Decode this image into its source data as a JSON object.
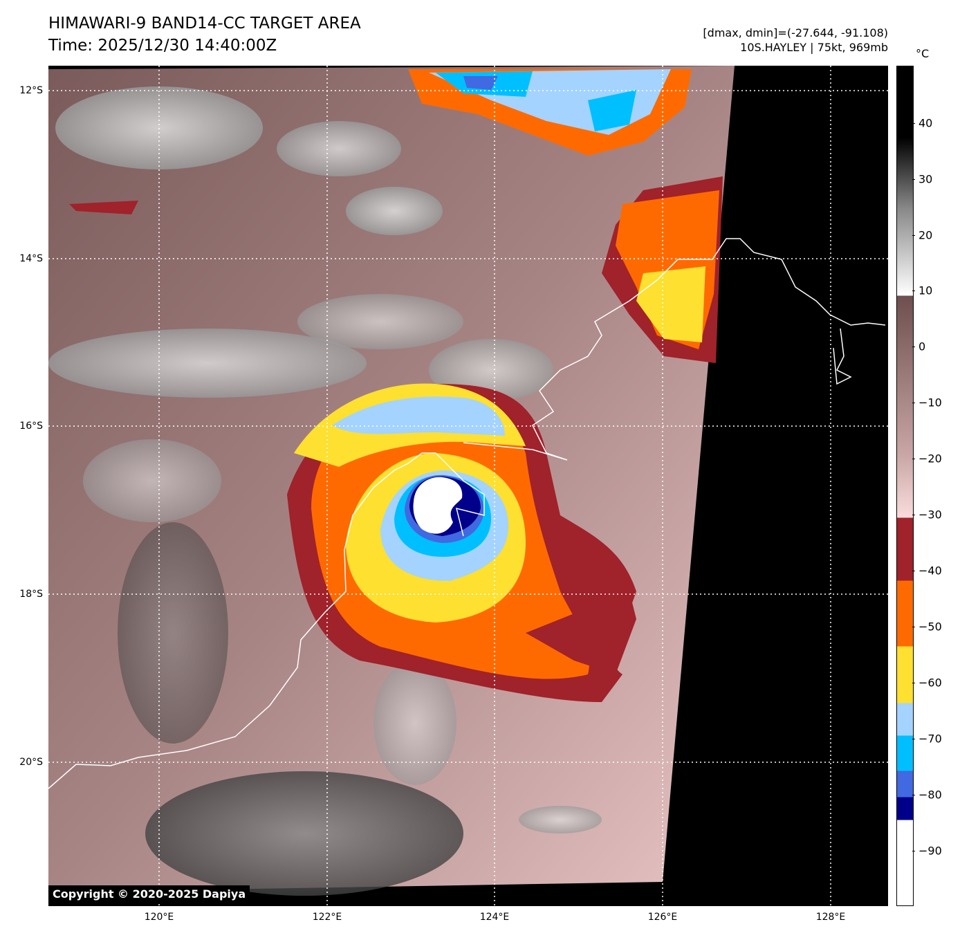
{
  "header": {
    "title_line1": "HIMAWARI-9 BAND14-CC TARGET AREA",
    "title_line2": "Time: 2025/12/30 14:40:00Z",
    "dminmax": "[dmax, dmin]=(-27.644, -91.108)",
    "storm": "10S.HAYLEY | 75kt, 969mb"
  },
  "map": {
    "lat_labels": [
      "12°S",
      "14°S",
      "16°S",
      "18°S",
      "20°S"
    ],
    "lon_labels": [
      "120°E",
      "122°E",
      "124°E",
      "126°E",
      "128°E"
    ],
    "copyright": "Copyright © 2020-2025 Dapiya"
  },
  "colorbar": {
    "unit": "°C",
    "ticks": [
      "40",
      "30",
      "20",
      "10",
      "0",
      "−10",
      "−20",
      "−30",
      "−40",
      "−50",
      "−60",
      "−70",
      "−80",
      "−90"
    ],
    "colors": {
      "dark_red": "#a0222a",
      "orange": "#ff6a00",
      "yellow": "#fde030",
      "light_blue": "#a4d3ff",
      "cyan": "#00bfff",
      "royal_blue": "#4169e1",
      "navy": "#00008b",
      "white": "#ffffff"
    }
  }
}
